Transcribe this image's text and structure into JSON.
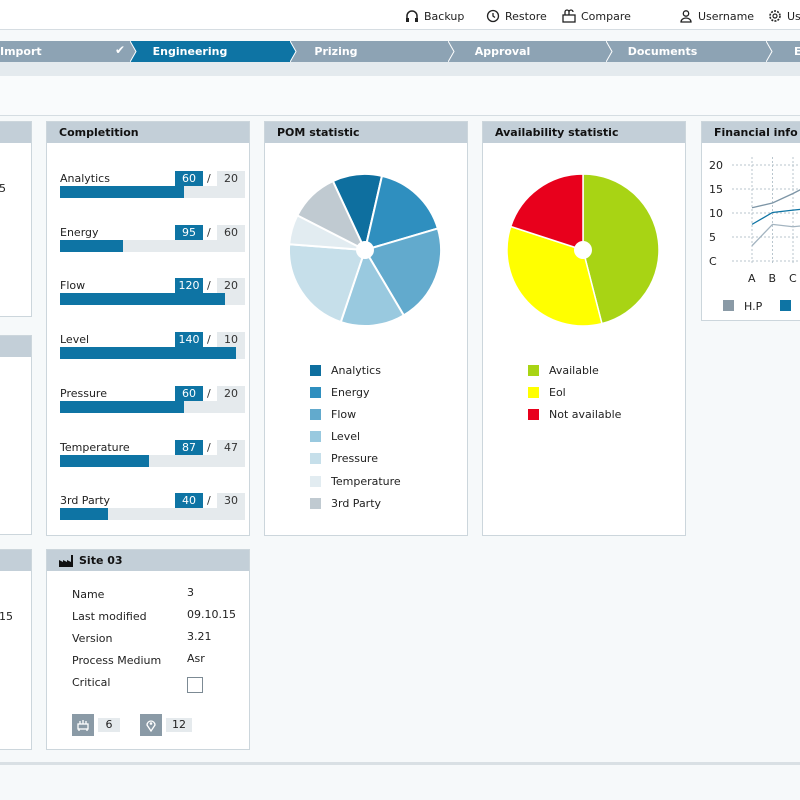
{
  "toolbar": {
    "backup_label": "Backup",
    "restore_label": "Restore",
    "compare_label": "Compare",
    "username_label": "Username",
    "user_settings_label": "Use"
  },
  "workflow": {
    "steps": [
      {
        "label": "Import",
        "state": "done"
      },
      {
        "label": "Engineering",
        "state": "active"
      },
      {
        "label": "Prizing",
        "state": "todo"
      },
      {
        "label": "Approval",
        "state": "todo"
      },
      {
        "label": "Documents",
        "state": "todo"
      },
      {
        "label": "E",
        "state": "todo"
      }
    ]
  },
  "left_panel": {
    "partial_value": "5",
    "partial_value_2": "15"
  },
  "completion": {
    "title": "Completition",
    "rows": [
      {
        "label": "Analytics",
        "value": "60",
        "total": "20",
        "fill": 0.67
      },
      {
        "label": "Energy",
        "value": "95",
        "total": "60",
        "fill": 0.34
      },
      {
        "label": "Flow",
        "value": "120",
        "total": "20",
        "fill": 0.89
      },
      {
        "label": "Level",
        "value": "140",
        "total": "10",
        "fill": 0.95
      },
      {
        "label": "Pressure",
        "value": "60",
        "total": "20",
        "fill": 0.67
      },
      {
        "label": "Temperature",
        "value": "87",
        "total": "47",
        "fill": 0.48
      },
      {
        "label": "3rd Party",
        "value": "40",
        "total": "30",
        "fill": 0.26
      }
    ]
  },
  "pom": {
    "title": "POM statistic",
    "legend": [
      "Analytics",
      "Energy",
      "Flow",
      "Level",
      "Pressure",
      "Temperature",
      "3rd Party"
    ],
    "colors": [
      "#0e6f9f",
      "#2f8fbf",
      "#62aacd",
      "#99c9df",
      "#c6dfea",
      "#e2ecf1",
      "#c0cad1"
    ]
  },
  "availability": {
    "title": "Availability statistic",
    "legend": [
      "Available",
      "Eol",
      "Not available"
    ],
    "colors": [
      "#a8d414",
      "#ffff00",
      "#e8001c"
    ]
  },
  "financial": {
    "title": "Financial info",
    "y_ticks": [
      "20",
      "15",
      "10",
      "5",
      "C"
    ],
    "x_ticks": [
      "A",
      "B",
      "C"
    ],
    "legend": [
      "H.P",
      ""
    ],
    "legend_colors": [
      "#8a9aa6",
      "#0e74a4"
    ]
  },
  "site": {
    "title": "Site 03",
    "fields": [
      {
        "label": "Name",
        "value": "3"
      },
      {
        "label": "Last modified",
        "value": "09.10.15"
      },
      {
        "label": "Version",
        "value": "3.21"
      },
      {
        "label": "Process Medium",
        "value": "Asr"
      },
      {
        "label": "Critical",
        "value": ""
      }
    ],
    "device_count": "6",
    "location_count": "12"
  },
  "chart_data": [
    {
      "type": "pie",
      "title": "POM statistic",
      "labels": [
        "Analytics",
        "Energy",
        "Flow",
        "Level",
        "Pressure",
        "Temperature",
        "3rd Party"
      ],
      "values": [
        10,
        16,
        20,
        13,
        20,
        6,
        10
      ]
    },
    {
      "type": "pie",
      "title": "Availability statistic",
      "labels": [
        "Available",
        "Eol",
        "Not available"
      ],
      "values": [
        46,
        34,
        20
      ]
    },
    {
      "type": "line",
      "title": "Financial info",
      "categories": [
        "A",
        "B",
        "C"
      ],
      "ylim": [
        0,
        20
      ],
      "series": [
        {
          "name": "H.P",
          "values": [
            3,
            7.5,
            7
          ]
        },
        {
          "values": [
            7.5,
            10,
            10.5
          ]
        },
        {
          "values": [
            11,
            12,
            14
          ]
        }
      ]
    }
  ]
}
